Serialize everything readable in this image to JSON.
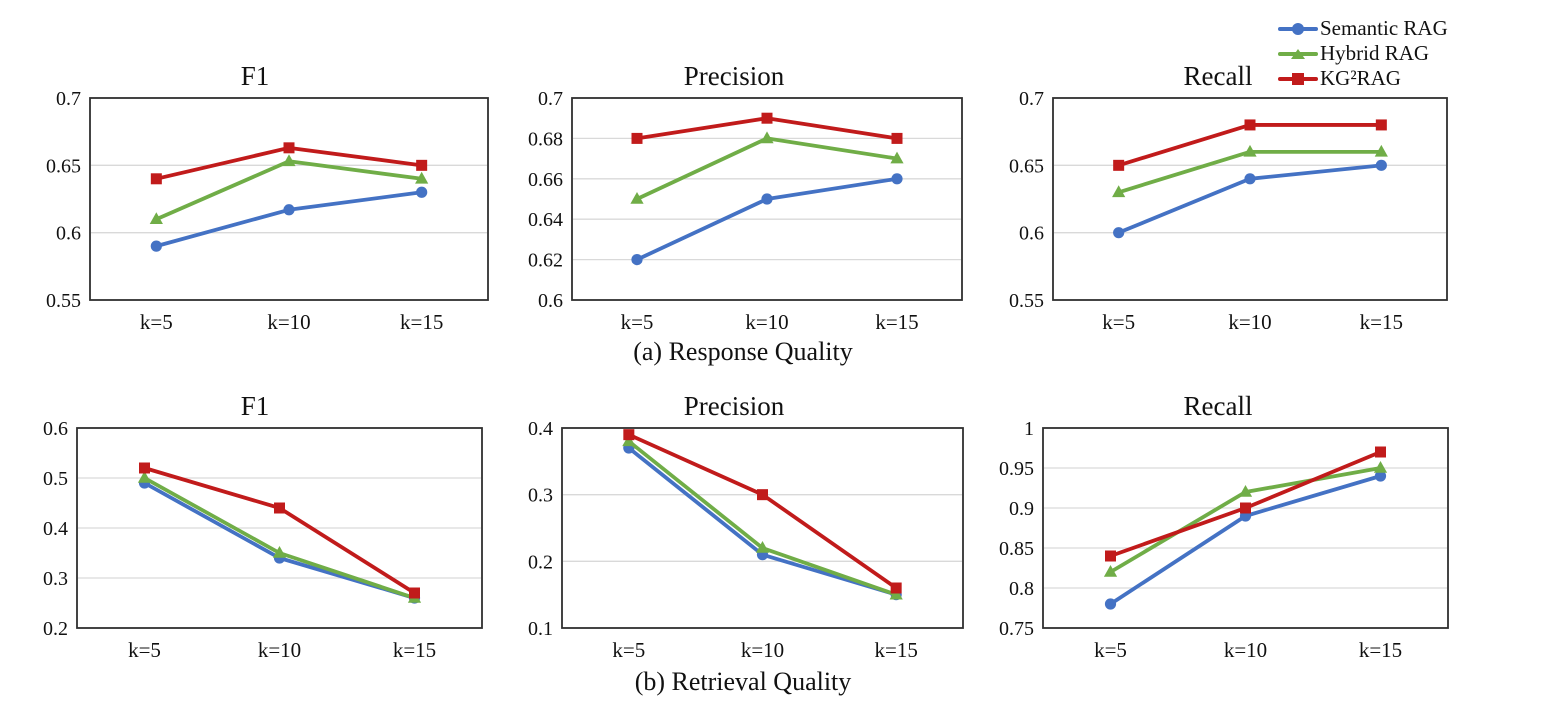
{
  "figure": {
    "caption_a": "(a) Response Quality",
    "caption_b": "(b) Retrieval Quality"
  },
  "legend": {
    "position": "top-right",
    "items": [
      {
        "label": "Semantic RAG",
        "color": "#4472C4",
        "marker": "circle"
      },
      {
        "label": "Hybrid RAG",
        "color": "#70AD47",
        "marker": "triangle"
      },
      {
        "label": "KG²RAG",
        "color": "#C11B1B",
        "marker": "square"
      }
    ]
  },
  "chart_data": [
    {
      "id": "response-f1",
      "type": "line",
      "title": "F1",
      "group": "(a) Response Quality",
      "categories": [
        "k=5",
        "k=10",
        "k=15"
      ],
      "ylim": [
        0.55,
        0.7
      ],
      "grid": true,
      "yticks": [
        0.55,
        0.6,
        0.65,
        0.7
      ],
      "ytick_labels": [
        "0.55",
        "0.6",
        "0.65",
        "0.7"
      ],
      "series": [
        {
          "name": "Semantic RAG",
          "values": [
            0.59,
            0.617,
            0.63
          ]
        },
        {
          "name": "Hybrid RAG",
          "values": [
            0.61,
            0.653,
            0.64
          ]
        },
        {
          "name": "KG²RAG",
          "values": [
            0.64,
            0.663,
            0.65
          ]
        }
      ]
    },
    {
      "id": "response-precision",
      "type": "line",
      "title": "Precision",
      "group": "(a) Response Quality",
      "categories": [
        "k=5",
        "k=10",
        "k=15"
      ],
      "ylim": [
        0.6,
        0.7
      ],
      "grid": true,
      "yticks": [
        0.6,
        0.62,
        0.64,
        0.66,
        0.68,
        0.7
      ],
      "ytick_labels": [
        "0.6",
        "0.62",
        "0.64",
        "0.66",
        "0.68",
        "0.7"
      ],
      "series": [
        {
          "name": "Semantic RAG",
          "values": [
            0.62,
            0.65,
            0.66
          ]
        },
        {
          "name": "Hybrid RAG",
          "values": [
            0.65,
            0.68,
            0.67
          ]
        },
        {
          "name": "KG²RAG",
          "values": [
            0.68,
            0.69,
            0.68
          ]
        }
      ]
    },
    {
      "id": "response-recall",
      "type": "line",
      "title": "Recall",
      "group": "(a) Response Quality",
      "categories": [
        "k=5",
        "k=10",
        "k=15"
      ],
      "ylim": [
        0.55,
        0.7
      ],
      "grid": true,
      "yticks": [
        0.55,
        0.6,
        0.65,
        0.7
      ],
      "ytick_labels": [
        "0.55",
        "0.6",
        "0.65",
        "0.7"
      ],
      "series": [
        {
          "name": "Semantic RAG",
          "values": [
            0.6,
            0.64,
            0.65
          ]
        },
        {
          "name": "Hybrid RAG",
          "values": [
            0.63,
            0.66,
            0.66
          ]
        },
        {
          "name": "KG²RAG",
          "values": [
            0.65,
            0.68,
            0.68
          ]
        }
      ]
    },
    {
      "id": "retrieval-f1",
      "type": "line",
      "title": "F1",
      "group": "(b) Retrieval Quality",
      "categories": [
        "k=5",
        "k=10",
        "k=15"
      ],
      "ylim": [
        0.2,
        0.6
      ],
      "grid": true,
      "yticks": [
        0.2,
        0.3,
        0.4,
        0.5,
        0.6
      ],
      "ytick_labels": [
        "0.2",
        "0.3",
        "0.4",
        "0.5",
        "0.6"
      ],
      "series": [
        {
          "name": "Semantic RAG",
          "values": [
            0.49,
            0.34,
            0.26
          ]
        },
        {
          "name": "Hybrid RAG",
          "values": [
            0.5,
            0.35,
            0.26
          ]
        },
        {
          "name": "KG²RAG",
          "values": [
            0.52,
            0.44,
            0.27
          ]
        }
      ]
    },
    {
      "id": "retrieval-precision",
      "type": "line",
      "title": "Precision",
      "group": "(b) Retrieval Quality",
      "categories": [
        "k=5",
        "k=10",
        "k=15"
      ],
      "ylim": [
        0.1,
        0.4
      ],
      "grid": true,
      "yticks": [
        0.1,
        0.2,
        0.3,
        0.4
      ],
      "ytick_labels": [
        "0.1",
        "0.2",
        "0.3",
        "0.4"
      ],
      "series": [
        {
          "name": "Semantic RAG",
          "values": [
            0.37,
            0.21,
            0.15
          ]
        },
        {
          "name": "Hybrid RAG",
          "values": [
            0.38,
            0.22,
            0.15
          ]
        },
        {
          "name": "KG²RAG",
          "values": [
            0.39,
            0.3,
            0.16
          ]
        }
      ]
    },
    {
      "id": "retrieval-recall",
      "type": "line",
      "title": "Recall",
      "group": "(b) Retrieval Quality",
      "categories": [
        "k=5",
        "k=10",
        "k=15"
      ],
      "ylim": [
        0.75,
        1.0
      ],
      "grid": true,
      "yticks": [
        0.75,
        0.8,
        0.85,
        0.9,
        0.95,
        1
      ],
      "ytick_labels": [
        "0.75",
        "0.8",
        "0.85",
        "0.9",
        "0.95",
        "1"
      ],
      "series": [
        {
          "name": "Semantic RAG",
          "values": [
            0.78,
            0.89,
            0.94
          ]
        },
        {
          "name": "Hybrid RAG",
          "values": [
            0.82,
            0.92,
            0.95
          ]
        },
        {
          "name": "KG²RAG",
          "values": [
            0.84,
            0.9,
            0.97
          ]
        }
      ]
    }
  ]
}
